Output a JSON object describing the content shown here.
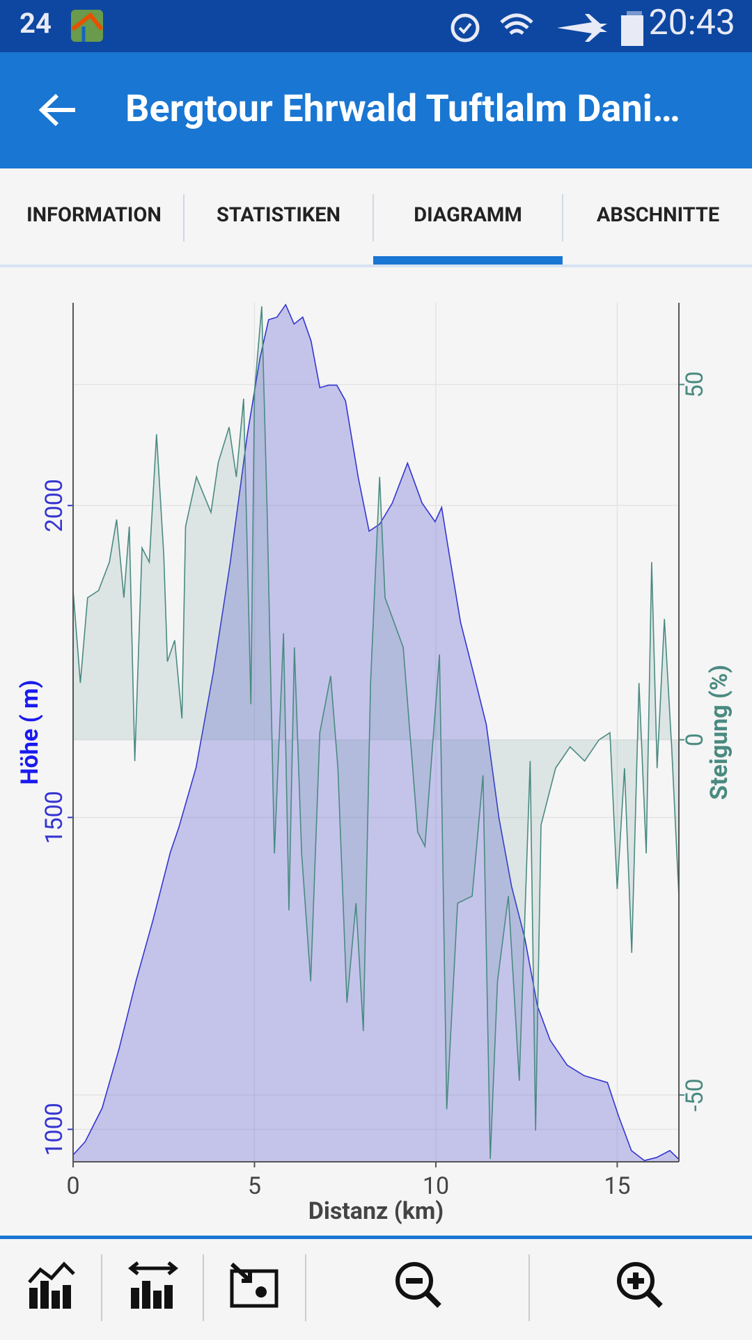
{
  "status_bar": {
    "left": "24",
    "time": "20:43"
  },
  "app_bar": {
    "title": "Bergtour Ehrwald Tuftlalm Dani…"
  },
  "tabs": [
    "INFORMATION",
    "STATISTIKEN",
    "DIAGRAMM",
    "ABSCHNITTE"
  ],
  "chart_data": {
    "type": "area",
    "xlabel": "Distanz (km)",
    "ylabel": "Höhe ( m)",
    "y2label": "Steigung (%)",
    "xlim": [
      0,
      16.7
    ],
    "xticks": [
      0,
      5,
      10,
      15
    ],
    "ylim": [
      948,
      2325
    ],
    "yticks": [
      1000,
      1500,
      2000
    ],
    "y2lim": [
      -59.4,
      61.5
    ],
    "y2ticks": [
      -50,
      0,
      50
    ],
    "grid": true,
    "series": [
      {
        "name": "Höhe ( m)",
        "color": "#3535d0",
        "axis": "y",
        "x": [
          0,
          0.33,
          0.8,
          1.27,
          1.74,
          2.2,
          2.68,
          2.92,
          3.39,
          3.86,
          4.33,
          4.8,
          5.15,
          5.39,
          5.62,
          5.86,
          6.09,
          6.33,
          6.56,
          6.8,
          7.04,
          7.27,
          7.51,
          7.86,
          8.16,
          8.45,
          8.8,
          9.22,
          9.62,
          9.98,
          10.16,
          10.33,
          10.68,
          11.04,
          11.39,
          11.74,
          12.09,
          12.45,
          12.8,
          13.15,
          13.62,
          14.09,
          14.73,
          15.04,
          15.39,
          15.75,
          16.09,
          16.45,
          16.7
        ],
        "values": [
          959,
          980,
          1034,
          1130,
          1239,
          1335,
          1444,
          1485,
          1580,
          1731,
          1908,
          2113,
          2236,
          2298,
          2302,
          2322,
          2291,
          2302,
          2264,
          2189,
          2193,
          2193,
          2168,
          2045,
          1959,
          1970,
          2004,
          2068,
          2004,
          1974,
          1997,
          1936,
          1813,
          1731,
          1649,
          1499,
          1389,
          1307,
          1198,
          1143,
          1103,
          1086,
          1075,
          1021,
          966,
          950,
          955,
          966,
          952
        ]
      },
      {
        "name": "Steigung (%)",
        "color": "#4a8a80",
        "axis": "y2",
        "x": [
          0,
          0.2,
          0.4,
          0.7,
          1.0,
          1.2,
          1.4,
          1.55,
          1.7,
          1.9,
          2.1,
          2.3,
          2.5,
          2.6,
          2.8,
          3.0,
          3.1,
          3.4,
          3.8,
          4.0,
          4.3,
          4.5,
          4.7,
          4.9,
          5.0,
          5.2,
          5.35,
          5.55,
          5.8,
          5.95,
          6.1,
          6.3,
          6.55,
          6.8,
          7.1,
          7.3,
          7.55,
          7.8,
          8.0,
          8.2,
          8.45,
          8.6,
          9.1,
          9.5,
          9.7,
          10.1,
          10.3,
          10.6,
          11.0,
          11.3,
          11.5,
          11.7,
          12.0,
          12.3,
          12.6,
          12.75,
          12.9,
          13.3,
          13.7,
          14.1,
          14.5,
          14.8,
          15.0,
          15.2,
          15.4,
          15.6,
          15.8,
          15.95,
          16.1,
          16.3,
          16.5,
          16.7
        ],
        "values": [
          21,
          8,
          20,
          21,
          25,
          31,
          20,
          30,
          -3,
          27,
          25,
          43,
          26,
          11,
          14,
          3,
          30,
          37,
          32,
          39,
          44,
          37,
          48,
          5,
          49,
          61,
          32,
          -16,
          15,
          -24,
          13,
          -16,
          -34,
          1,
          9,
          -4,
          -37,
          -23,
          -41,
          8,
          37,
          20,
          13,
          -13,
          -15,
          12,
          -52,
          -23,
          -22,
          -5,
          -59,
          -34,
          -22,
          -48,
          -3,
          -55,
          -12,
          -4,
          -1,
          -3,
          0,
          1,
          -21,
          -4,
          -30,
          8,
          -16,
          25,
          -4,
          17,
          -1,
          -22
        ]
      }
    ]
  }
}
